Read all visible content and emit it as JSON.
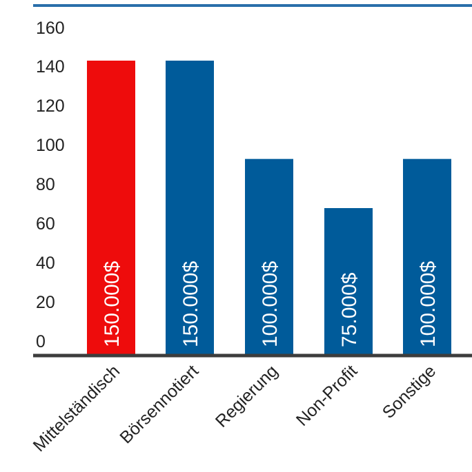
{
  "chart_data": {
    "type": "bar",
    "categories": [
      "Mittelständisch",
      "Börsennotiert",
      "Regierung",
      "Non-Profit",
      "Sonstige"
    ],
    "values": [
      150,
      150,
      100,
      75,
      100
    ],
    "data_labels": [
      "150.000$",
      "150.000$",
      "100.000$",
      "75.000$",
      "100.000$"
    ],
    "ylim": [
      0,
      160
    ],
    "yticks": [
      "0",
      "20",
      "40",
      "60",
      "80",
      "100",
      "120",
      "140",
      "160"
    ],
    "title": "",
    "xlabel": "",
    "ylabel": "",
    "grid": false,
    "colors": {
      "highlight": "#ee0c0c",
      "bar": "#005b9a",
      "top_rule": "#2a6faa",
      "baseline": "#3d3d3d"
    },
    "bar_colors": [
      "highlight",
      "bar",
      "bar",
      "bar",
      "bar"
    ]
  }
}
